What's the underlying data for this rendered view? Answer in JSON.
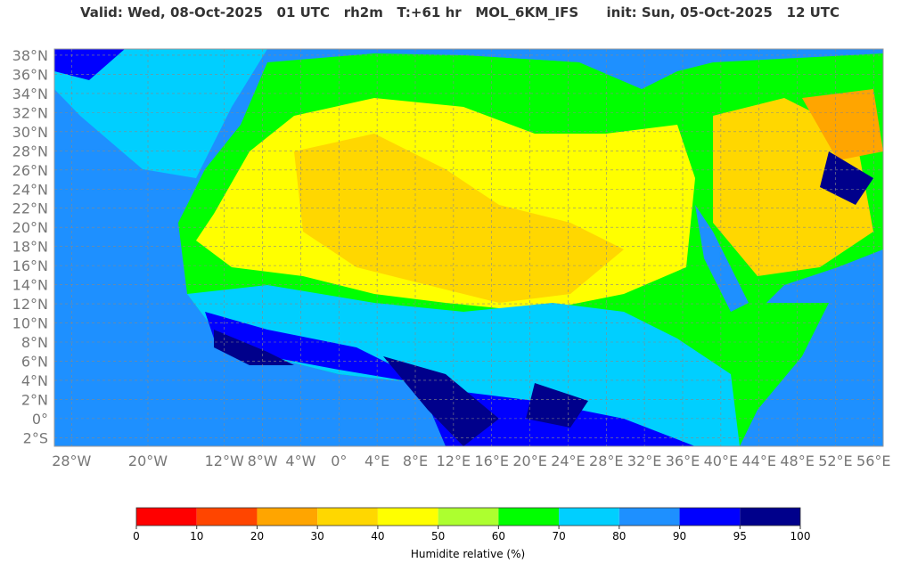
{
  "title": "Valid: Wed, 08-Oct-2025   01 UTC   rh2m   T:+61 hr   MOL_6KM_IFS      init: Sun, 05-Oct-2025   12 UTC",
  "map": {
    "xlim": [
      -29.8,
      57
    ],
    "ylim": [
      -2.9,
      38.65
    ],
    "xticks": [
      {
        "value": -28,
        "label": "28°W"
      },
      {
        "value": -20,
        "label": "20°W"
      },
      {
        "value": -12,
        "label": "12°W"
      },
      {
        "value": -8,
        "label": "8°W"
      },
      {
        "value": -4,
        "label": "4°W"
      },
      {
        "value": 0,
        "label": "0°"
      },
      {
        "value": 4,
        "label": "4°E"
      },
      {
        "value": 8,
        "label": "8°E"
      },
      {
        "value": 12,
        "label": "12°E"
      },
      {
        "value": 16,
        "label": "16°E"
      },
      {
        "value": 20,
        "label": "20°E"
      },
      {
        "value": 24,
        "label": "24°E"
      },
      {
        "value": 28,
        "label": "28°E"
      },
      {
        "value": 32,
        "label": "32°E"
      },
      {
        "value": 36,
        "label": "36°E"
      },
      {
        "value": 40,
        "label": "40°E"
      },
      {
        "value": 44,
        "label": "44°E"
      },
      {
        "value": 48,
        "label": "48°E"
      },
      {
        "value": 52,
        "label": "52°E"
      },
      {
        "value": 56,
        "label": "56°E"
      }
    ],
    "yticks": [
      {
        "value": 38,
        "label": "38°N"
      },
      {
        "value": 36,
        "label": "36°N"
      },
      {
        "value": 34,
        "label": "34°N"
      },
      {
        "value": 32,
        "label": "32°N"
      },
      {
        "value": 30,
        "label": "30°N"
      },
      {
        "value": 28,
        "label": "28°N"
      },
      {
        "value": 26,
        "label": "26°N"
      },
      {
        "value": 24,
        "label": "24°N"
      },
      {
        "value": 22,
        "label": "22°N"
      },
      {
        "value": 20,
        "label": "20°N"
      },
      {
        "value": 18,
        "label": "18°N"
      },
      {
        "value": 16,
        "label": "16°N"
      },
      {
        "value": 14,
        "label": "14°N"
      },
      {
        "value": 12,
        "label": "12°N"
      },
      {
        "value": 10,
        "label": "10°N"
      },
      {
        "value": 8,
        "label": "8°N"
      },
      {
        "value": 6,
        "label": "6°N"
      },
      {
        "value": 4,
        "label": "4°N"
      },
      {
        "value": 2,
        "label": "2°N"
      },
      {
        "value": 0,
        "label": "0°"
      },
      {
        "value": -2,
        "label": "2°S"
      }
    ]
  },
  "colorbar": {
    "label": "Humidite relative (%)",
    "ticks": [
      0,
      10,
      20,
      30,
      40,
      50,
      60,
      70,
      80,
      90,
      95,
      100
    ],
    "colors": [
      "#ff0000",
      "#ff4500",
      "#ffa500",
      "#ffd700",
      "#ffff00",
      "#adff2f",
      "#00ff00",
      "#00cfff",
      "#1e90ff",
      "#0000ff",
      "#00008b"
    ]
  }
}
